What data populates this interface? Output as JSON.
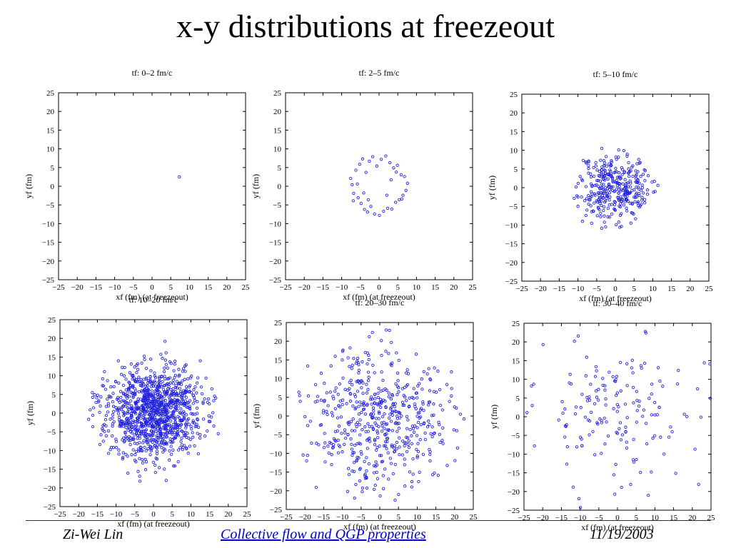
{
  "slide": {
    "title": "x-y distributions at freezeout"
  },
  "footer": {
    "author": "Zi-Wei Lin",
    "center_link": "Collective flow and QGP properties",
    "date": "11/19/2003",
    "line_color": "#a00000",
    "link_color": "#0000cc"
  },
  "marker_color": "#2020e0",
  "chart_data": [
    {
      "type": "scatter",
      "title": "tf:  0–2 fm/c",
      "xlabel": "xf (fm) (at freezeout)",
      "ylabel": "yf (fm)",
      "xlim": [
        -25,
        25
      ],
      "ylim": [
        -25,
        25
      ],
      "xticks": [
        "−25",
        "−20",
        "−15",
        "−10",
        "−5",
        "0",
        "5",
        "10",
        "15",
        "20",
        "25"
      ],
      "yticks": [
        "25",
        "20",
        "15",
        "10",
        "5",
        "0",
        "−5",
        "−10",
        "−15",
        "−20",
        "−25"
      ],
      "grid": false,
      "points": [
        [
          7.3,
          2.5
        ]
      ]
    },
    {
      "type": "scatter",
      "title": "tf:  2–5 fm/c",
      "xlabel": "xf (fm) (at freezeout)",
      "ylabel": "yf (fm)",
      "xlim": [
        -25,
        25
      ],
      "ylim": [
        -25,
        25
      ],
      "xticks": [
        "−25",
        "−20",
        "−15",
        "−10",
        "−5",
        "0",
        "5",
        "10",
        "15",
        "20",
        "25"
      ],
      "yticks": [
        "25",
        "20",
        "15",
        "10",
        "5",
        "0",
        "−5",
        "−10",
        "−15",
        "−20",
        "−25"
      ],
      "grid": false,
      "points": [
        [
          -7.6,
          2.1
        ],
        [
          -7.2,
          0.4
        ],
        [
          -6.8,
          -1.9
        ],
        [
          -6.2,
          4.3
        ],
        [
          -5.6,
          -3.1
        ],
        [
          -5.2,
          5.9
        ],
        [
          -4.8,
          -4.6
        ],
        [
          -4.4,
          7.3
        ],
        [
          -3.9,
          -6.2
        ],
        [
          -3.5,
          3.7
        ],
        [
          -3.1,
          -6.9
        ],
        [
          -2.6,
          6.7
        ],
        [
          -2.2,
          -5.4
        ],
        [
          -1.7,
          7.9
        ],
        [
          -1.2,
          -7.4
        ],
        [
          -0.6,
          5.4
        ],
        [
          0.1,
          -7.8
        ],
        [
          0.6,
          7.2
        ],
        [
          1.2,
          -6.7
        ],
        [
          1.8,
          8.1
        ],
        [
          2.3,
          -5.9
        ],
        [
          2.9,
          6.3
        ],
        [
          3.4,
          -6.1
        ],
        [
          3.9,
          4.9
        ],
        [
          4.4,
          -4.3
        ],
        [
          4.9,
          5.6
        ],
        [
          5.4,
          -3.6
        ],
        [
          5.9,
          3.1
        ],
        [
          6.4,
          -2.4
        ],
        [
          6.8,
          2.6
        ],
        [
          7.2,
          -1.1
        ],
        [
          7.6,
          0.8
        ],
        [
          -5.8,
          0.6
        ],
        [
          -4.1,
          -1.8
        ],
        [
          2.1,
          -2.4
        ],
        [
          3.2,
          1.7
        ],
        [
          6.1,
          -3.4
        ],
        [
          -2.9,
          -3.6
        ],
        [
          4.6,
          3.8
        ],
        [
          -6.9,
          -3.9
        ]
      ]
    },
    {
      "type": "scatter",
      "title": "tf:  5–10 fm/c",
      "xlabel": "xf (fm) (at freezeout)",
      "ylabel": "yf (fm)",
      "xlim": [
        -25,
        25
      ],
      "ylim": [
        -25,
        25
      ],
      "xticks": [
        "−25",
        "−20",
        "−15",
        "−10",
        "−5",
        "0",
        "5",
        "10",
        "15",
        "20",
        "25"
      ],
      "yticks": [
        "25",
        "20",
        "15",
        "10",
        "5",
        "0",
        "−5",
        "−10",
        "−15",
        "−20",
        "−25"
      ],
      "grid": false,
      "cloud": {
        "n": 340,
        "sx": 5.0,
        "sy": 4.5,
        "seed": 11,
        "clip": 11.5
      },
      "points": [
        [
          -10.5,
          0.2
        ],
        [
          -10.0,
          -2.5
        ],
        [
          -9.4,
          3.0
        ],
        [
          10.2,
          -1.2
        ],
        [
          9.8,
          1.5
        ],
        [
          -3.6,
          10.5
        ],
        [
          0.9,
          10.1
        ],
        [
          -2.6,
          -10.5
        ],
        [
          1.2,
          -10.6
        ],
        [
          -7.6,
          -6.0
        ],
        [
          -8.8,
          -9.0
        ]
      ]
    },
    {
      "type": "scatter",
      "title": "tf:  10–20 fm/c",
      "xlabel": "xf (fm) (at freezeout)",
      "ylabel": "yf (fm)",
      "xlim": [
        -25,
        25
      ],
      "ylim": [
        -25,
        25
      ],
      "xticks": [
        "−25",
        "−20",
        "−15",
        "−10",
        "−5",
        "0",
        "5",
        "10",
        "15",
        "20",
        "25"
      ],
      "yticks": [
        "25",
        "20",
        "15",
        "10",
        "5",
        "0",
        "−5",
        "−10",
        "−15",
        "−20",
        "−25"
      ],
      "grid": false,
      "cloud": {
        "n": 1100,
        "sx": 6.4,
        "sy": 6.3,
        "seed": 23,
        "clip": 17.5
      },
      "points": [
        [
          -15.2,
          4.1
        ],
        [
          17.3,
          -5.5
        ],
        [
          3.1,
          19.2
        ],
        [
          -3.6,
          -18.2
        ],
        [
          3.4,
          -18.0
        ],
        [
          12.5,
          14.0
        ]
      ]
    },
    {
      "type": "scatter",
      "title": "tf:  20–30 fm/c",
      "xlabel": "xf (fm) (at freezeout)",
      "ylabel": "yf (fm)",
      "xlim": [
        -25,
        25
      ],
      "ylim": [
        -25,
        25
      ],
      "xticks": [
        "−25",
        "−20",
        "−15",
        "−10",
        "−5",
        "0",
        "5",
        "10",
        "15",
        "20",
        "25"
      ],
      "yticks": [
        "25",
        "20",
        "15",
        "10",
        "5",
        "0",
        "−5",
        "−10",
        "−15",
        "−20",
        "−25"
      ],
      "grid": false,
      "cloud": {
        "n": 520,
        "sx": 9.0,
        "sy": 9.2,
        "seed": 37,
        "clip": 23.5
      },
      "points": [
        [
          1.7,
          23.0
        ],
        [
          2.6,
          22.9
        ],
        [
          -2.8,
          21.2
        ],
        [
          -20.0,
          -0.2
        ],
        [
          22.5,
          -0.8
        ],
        [
          -17.0,
          -19.1
        ],
        [
          0.1,
          -21.4
        ],
        [
          4.1,
          -22.5
        ],
        [
          -8.6,
          -20.2
        ]
      ]
    },
    {
      "type": "scatter",
      "title": "tf:  30–40 fm/c",
      "xlabel": "xf (fm) (at freezeout)",
      "ylabel": "yf (fm)",
      "xlim": [
        -25,
        25
      ],
      "ylim": [
        -25,
        25
      ],
      "xticks": [
        "−25",
        "−20",
        "−15",
        "−10",
        "−5",
        "0",
        "5",
        "10",
        "15",
        "20",
        "25"
      ],
      "yticks": [
        "25",
        "20",
        "15",
        "10",
        "5",
        "0",
        "−5",
        "−10",
        "−15",
        "−20",
        "−25"
      ],
      "grid": false,
      "cloud": {
        "n": 150,
        "sx": 11.0,
        "sy": 10.5,
        "seed": 53,
        "clip": 24.5
      },
      "points": [
        [
          -23.0,
          8.2
        ],
        [
          -22.4,
          8.7
        ],
        [
          -19.9,
          19.3
        ],
        [
          -11.5,
          20.2
        ],
        [
          -10.5,
          21.6
        ],
        [
          -10.3,
          -21.9
        ],
        [
          -9.9,
          -24.3
        ],
        [
          7.6,
          22.4
        ],
        [
          24.7,
          14.1
        ],
        [
          23.2,
          14.4
        ],
        [
          -22.2,
          -7.8
        ],
        [
          21.7,
          -18.1
        ],
        [
          24.8,
          4.9
        ]
      ]
    }
  ]
}
